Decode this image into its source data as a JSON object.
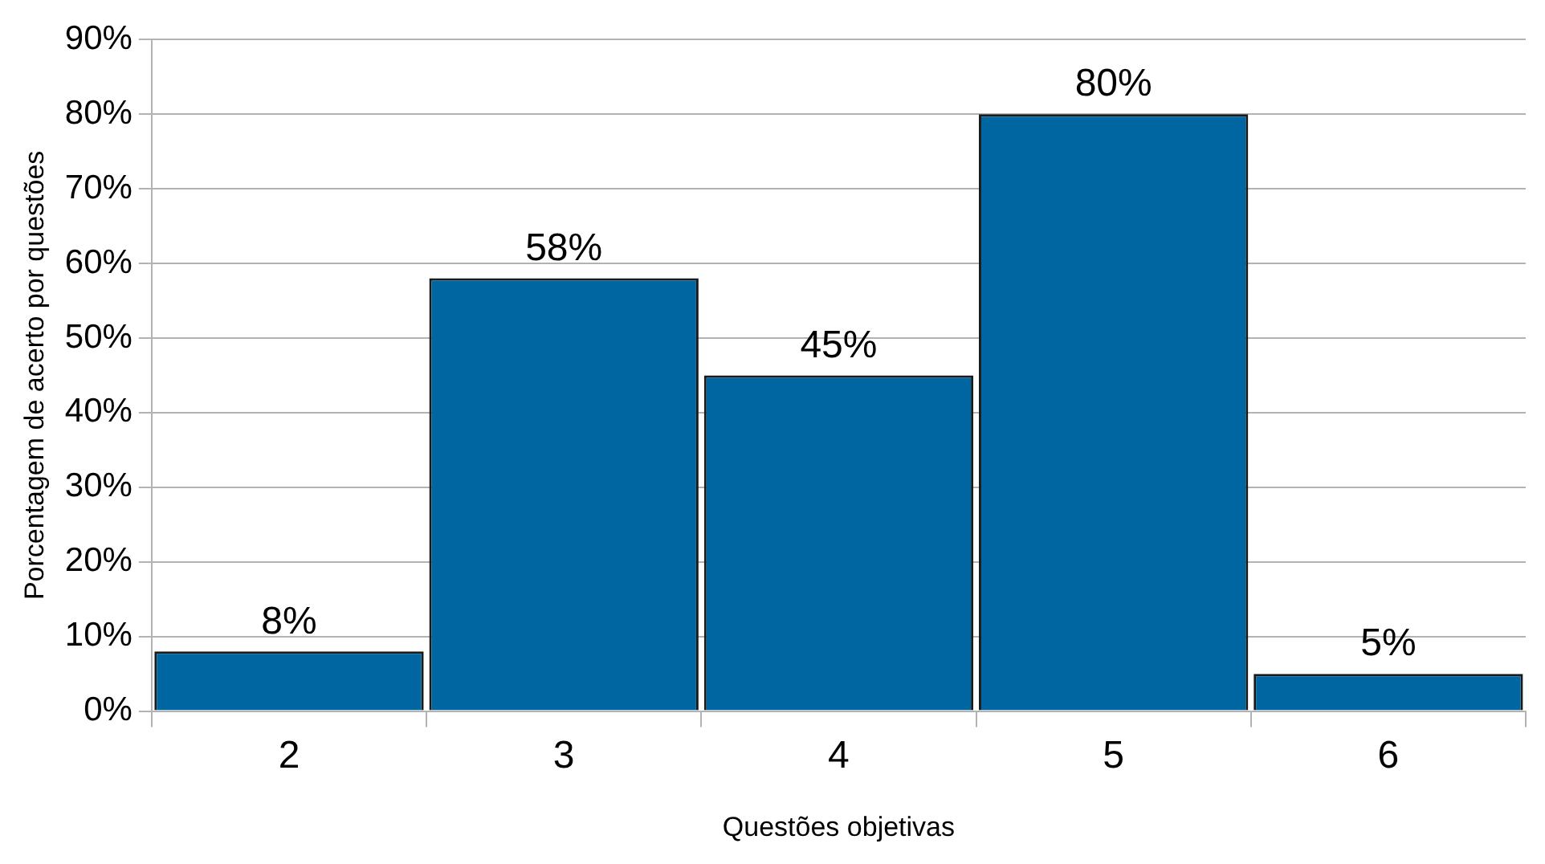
{
  "chart_data": {
    "type": "bar",
    "xlabel": "Questões objetivas",
    "ylabel": "Porcentagem de acerto por questões",
    "categories": [
      "2",
      "3",
      "4",
      "5",
      "6"
    ],
    "values": [
      8,
      58,
      45,
      80,
      5
    ],
    "value_labels": [
      "8%",
      "58%",
      "45%",
      "80%",
      "5%"
    ],
    "color": "#0066a1",
    "ylim": [
      0,
      90
    ],
    "yticks": [
      {
        "value": 0,
        "label": "0%"
      },
      {
        "value": 10,
        "label": "10%"
      },
      {
        "value": 20,
        "label": "20%"
      },
      {
        "value": 30,
        "label": "30%"
      },
      {
        "value": 40,
        "label": "40%"
      },
      {
        "value": 50,
        "label": "50%"
      },
      {
        "value": 60,
        "label": "60%"
      },
      {
        "value": 70,
        "label": "70%"
      },
      {
        "value": 80,
        "label": "80%"
      },
      {
        "value": 90,
        "label": "90%"
      }
    ],
    "grid": "y",
    "legend": false
  }
}
